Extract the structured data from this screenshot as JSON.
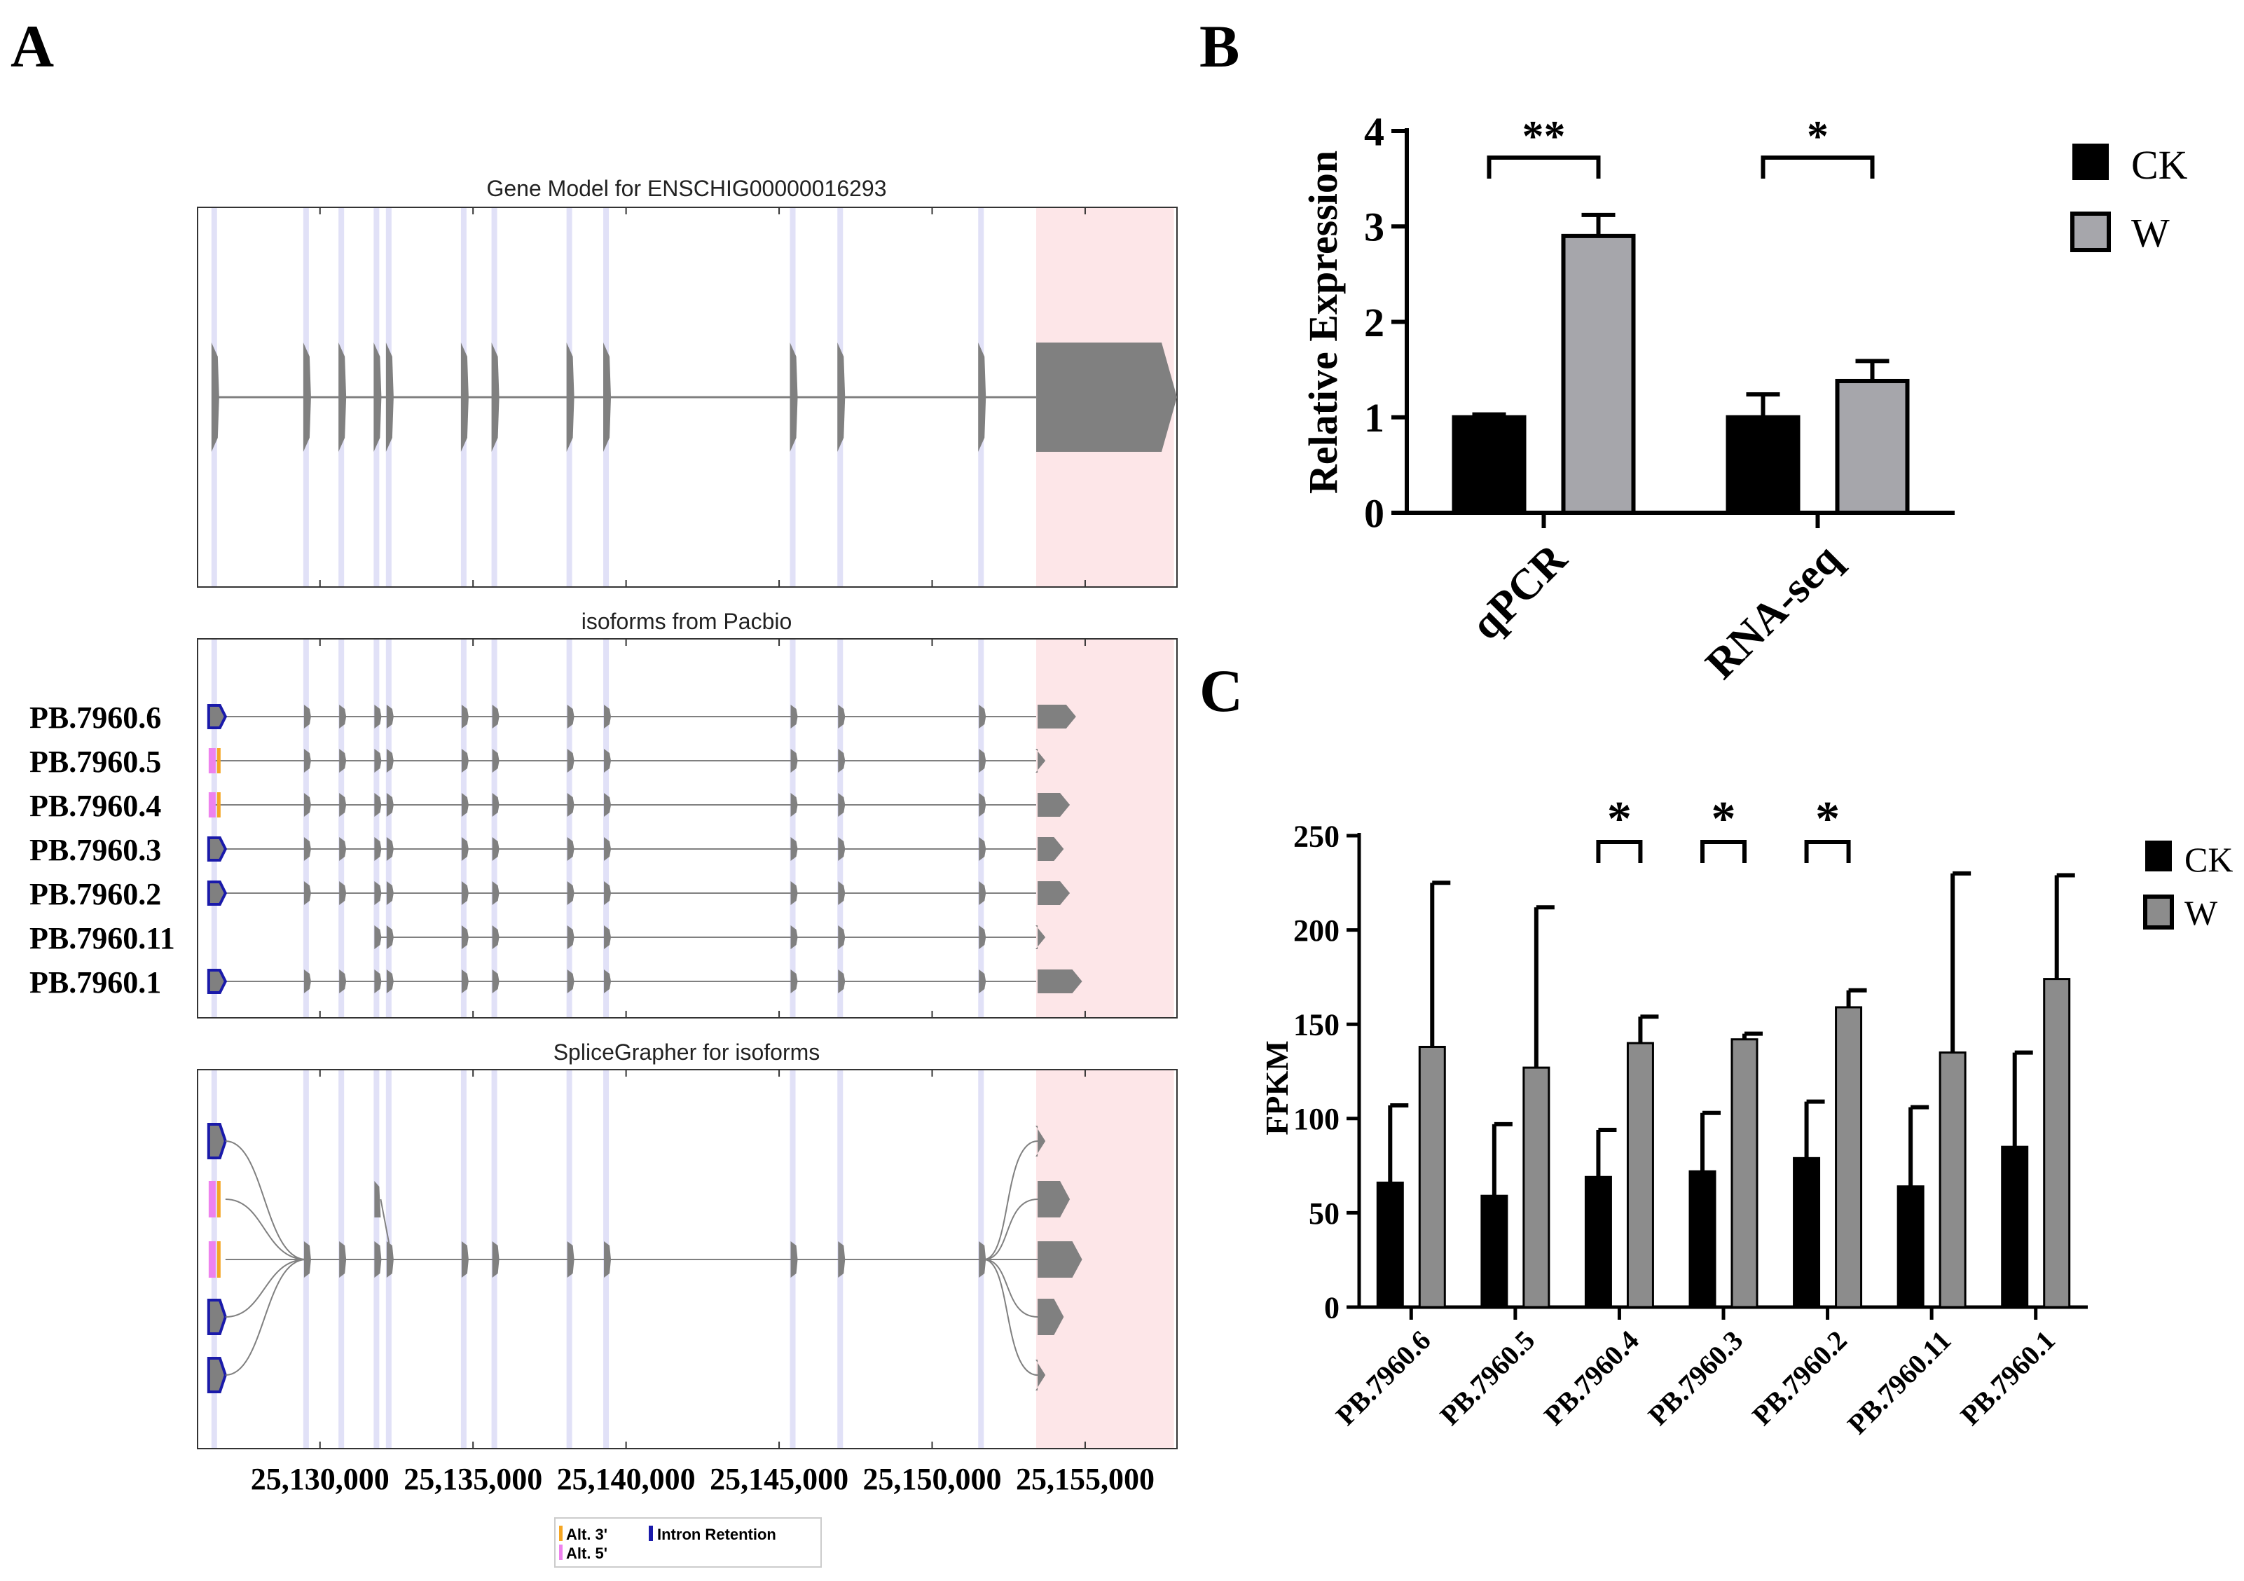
{
  "chart_data": [
    {
      "panel": "A",
      "type": "gene-structure",
      "titles": {
        "gene_model": "Gene Model for ENSCHIG00000016293",
        "isoforms": "isoforms from Pacbio",
        "splicegrapher": "SpliceGrapher for isoforms"
      },
      "xlim": [
        25126000,
        25158000
      ],
      "x_ticks": [
        25130000,
        25135000,
        25140000,
        25145000,
        25150000,
        25155000
      ],
      "x_tick_labels": [
        "25,130,000",
        "25,135,000",
        "25,140,000",
        "25,145,000",
        "25,150,000",
        "25,155,000"
      ],
      "exons": [
        {
          "start": 25126500,
          "end": 25126700
        },
        {
          "start": 25129500,
          "end": 25129700
        },
        {
          "start": 25130650,
          "end": 25130850
        },
        {
          "start": 25131800,
          "end": 25132000
        },
        {
          "start": 25132200,
          "end": 25132400
        },
        {
          "start": 25134650,
          "end": 25134850
        },
        {
          "start": 25135650,
          "end": 25135850
        },
        {
          "start": 25138100,
          "end": 25138300
        },
        {
          "start": 25139300,
          "end": 25139500
        },
        {
          "start": 25145400,
          "end": 25145600
        },
        {
          "start": 25146950,
          "end": 25147150
        },
        {
          "start": 25151550,
          "end": 25151750
        },
        {
          "start": 25153400,
          "end": 25158000
        }
      ],
      "highlight_region": [
        25153400,
        25157900
      ],
      "isoforms": [
        {
          "name": "PB.7960.6",
          "start": 25126400,
          "end": 25154700,
          "first_exon": 0,
          "five_prime": "intron-retention",
          "tail_end": 25154700
        },
        {
          "name": "PB.7960.5",
          "start": 25126400,
          "end": 25153700,
          "first_exon": 0,
          "five_prime": "alt5-alt3",
          "tail_end": 25153700
        },
        {
          "name": "PB.7960.4",
          "start": 25126400,
          "end": 25154500,
          "first_exon": 0,
          "five_prime": "alt5-alt3",
          "tail_end": 25154500
        },
        {
          "name": "PB.7960.3",
          "start": 25126400,
          "end": 25154300,
          "first_exon": 0,
          "five_prime": "intron-retention",
          "tail_end": 25154300
        },
        {
          "name": "PB.7960.2",
          "start": 25126400,
          "end": 25154500,
          "first_exon": 0,
          "five_prime": "intron-retention",
          "tail_end": 25154500
        },
        {
          "name": "PB.7960.11",
          "start": 25131800,
          "end": 25153700,
          "first_exon": 3,
          "five_prime": "none",
          "tail_end": 25153700
        },
        {
          "name": "PB.7960.1",
          "start": 25126400,
          "end": 25154900,
          "first_exon": 0,
          "five_prime": "intron-retention",
          "tail_end": 25154900
        }
      ],
      "legend": [
        {
          "label": "Alt. 3'",
          "color": "#f5a623"
        },
        {
          "label": "Alt. 5'",
          "color": "#ee82ee"
        },
        {
          "label": "Intron Retention",
          "color": "#1a1aaa"
        }
      ]
    },
    {
      "panel": "B",
      "type": "bar",
      "ylabel": "Relative Expression",
      "ylim": [
        0,
        4
      ],
      "yticks": [
        0,
        1,
        2,
        3,
        4
      ],
      "categories": [
        "qPCR",
        "RNA-seq"
      ],
      "series": [
        {
          "name": "CK",
          "color": "#000000",
          "values": [
            1.0,
            1.0
          ],
          "errors": [
            0.03,
            0.24
          ]
        },
        {
          "name": "W",
          "color": "#a6a6ab",
          "values": [
            2.9,
            1.38
          ],
          "errors": [
            0.22,
            0.21
          ]
        }
      ],
      "significance": [
        "**",
        "*"
      ]
    },
    {
      "panel": "C",
      "type": "bar",
      "ylabel": "FPKM",
      "ylim": [
        0,
        250
      ],
      "yticks": [
        0,
        50,
        100,
        150,
        200,
        250
      ],
      "categories": [
        "PB.7960.6",
        "PB.7960.5",
        "PB.7960.4",
        "PB.7960.3",
        "PB.7960.2",
        "PB.7960.11",
        "PB.7960.1"
      ],
      "series": [
        {
          "name": "CK",
          "color": "#000000",
          "values": [
            66,
            59,
            69,
            72,
            79,
            64,
            85
          ],
          "errors": [
            41,
            38,
            25,
            31,
            30,
            42,
            50
          ]
        },
        {
          "name": "W",
          "color": "#8c8c8c",
          "values": [
            138,
            127,
            140,
            142,
            159,
            135,
            174
          ],
          "errors": [
            87,
            85,
            14,
            3,
            9,
            95,
            55
          ]
        }
      ],
      "significance": [
        "",
        "",
        "*",
        "*",
        "*",
        "",
        ""
      ]
    }
  ],
  "panel_labels": {
    "a": "A",
    "b": "B",
    "c": "C"
  }
}
